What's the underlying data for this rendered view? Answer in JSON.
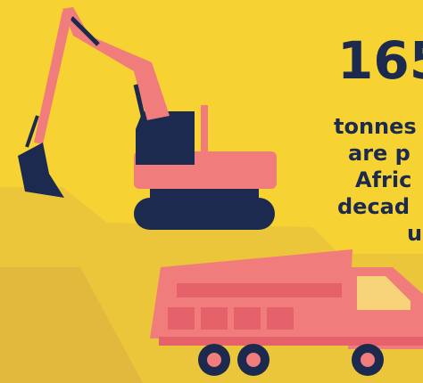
{
  "headline": "165",
  "lines": [
    "tonnes",
    "are p",
    "Afric",
    "decad",
    "u"
  ]
}
